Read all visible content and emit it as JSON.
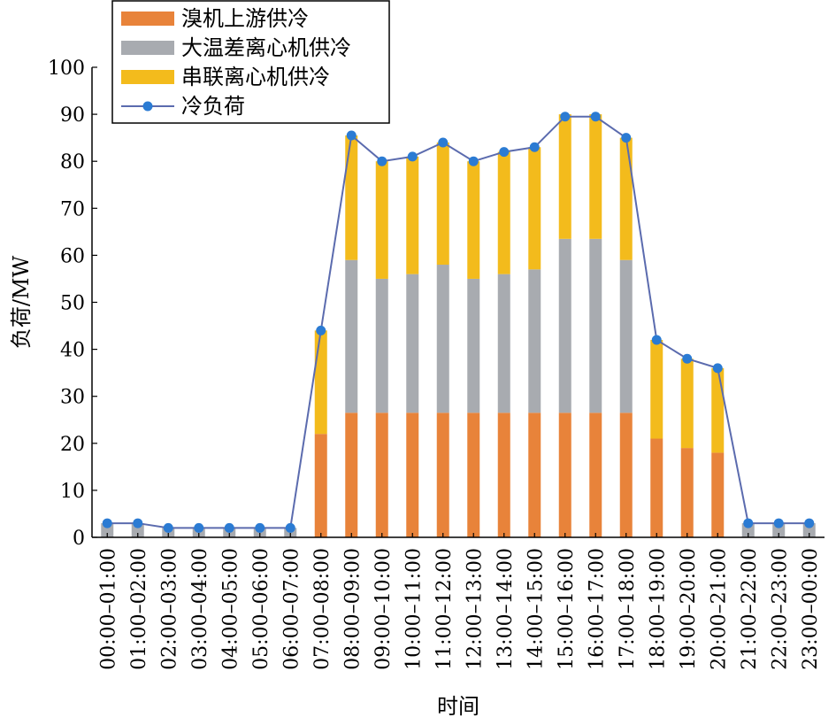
{
  "chart_data": {
    "type": "bar",
    "stacked": true,
    "xlabel": "时间",
    "ylabel": "负荷/MW",
    "ylim": [
      0,
      100
    ],
    "yticks": [
      0,
      10,
      20,
      30,
      40,
      50,
      60,
      70,
      80,
      90,
      100
    ],
    "legend_position": "top-left",
    "categories": [
      "00:00–01:00",
      "01:00–02:00",
      "02:00–03:00",
      "03:00–04:00",
      "04:00–05:00",
      "05:00–06:00",
      "06:00–07:00",
      "07:00–08:00",
      "08:00–09:00",
      "09:00–10:00",
      "10:00–11:00",
      "11:00–12:00",
      "12:00–13:00",
      "13:00–14:00",
      "14:00–15:00",
      "15:00–16:00",
      "16:00–17:00",
      "17:00–18:00",
      "18:00–19:00",
      "19:00–20:00",
      "20:00–21:00",
      "21:00–22:00",
      "22:00–23:00",
      "23:00–00:00"
    ],
    "series": [
      {
        "name": "溴机上游供冷",
        "kind": "bar",
        "color": "#E8833A",
        "values": [
          0,
          0,
          0,
          0,
          0,
          0,
          0,
          22,
          26.5,
          26.5,
          26.5,
          26.5,
          26.5,
          26.5,
          26.5,
          26.5,
          26.5,
          26.5,
          21,
          19,
          18,
          0,
          0,
          0
        ]
      },
      {
        "name": "大温差离心机供冷",
        "kind": "bar",
        "color": "#A8ABB0",
        "values": [
          3,
          3,
          2,
          2,
          2,
          2,
          2,
          0,
          32.5,
          28.5,
          29.5,
          31.5,
          28.5,
          29.5,
          30.5,
          37,
          37,
          32.5,
          0,
          0,
          0,
          3,
          3,
          3
        ]
      },
      {
        "name": "串联离心机供冷",
        "kind": "bar",
        "color": "#F3BB1C",
        "values": [
          0,
          0,
          0,
          0,
          0,
          0,
          0,
          22,
          26.5,
          25,
          25,
          26,
          25,
          26,
          26,
          26.5,
          26.5,
          26,
          21,
          19,
          18,
          0,
          0,
          0
        ]
      },
      {
        "name": "冷负荷",
        "kind": "line",
        "color": "#5B6BAE",
        "marker_color": "#2B7BD3",
        "values": [
          3,
          3,
          2,
          2,
          2,
          2,
          2,
          44,
          85.5,
          80,
          81,
          84,
          80,
          82,
          83,
          89.5,
          89.5,
          85,
          42,
          38,
          36,
          3,
          3,
          3
        ]
      }
    ]
  }
}
